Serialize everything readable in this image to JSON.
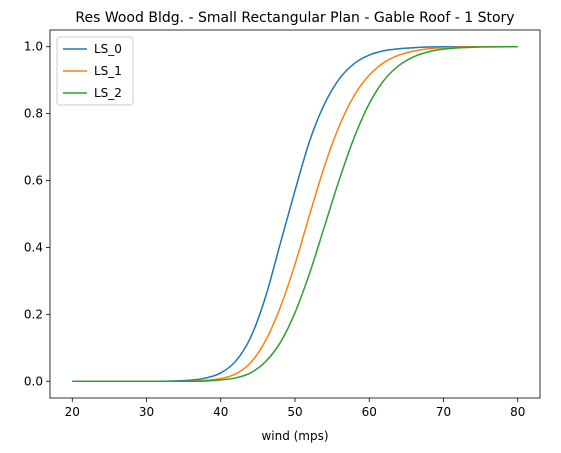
{
  "chart_data": {
    "type": "line",
    "title": "Res Wood Bldg. - Small Rectangular Plan - Gable Roof - 1 Story",
    "xlabel": "wind (mps)",
    "ylabel": "",
    "xlim": [
      17.0,
      83.0
    ],
    "ylim": [
      -0.05,
      1.05
    ],
    "xticks": [
      20,
      30,
      40,
      50,
      60,
      70,
      80
    ],
    "yticks": [
      0.0,
      0.2,
      0.4,
      0.6,
      0.8,
      1.0
    ],
    "xtick_labels": [
      "20",
      "30",
      "40",
      "50",
      "60",
      "70",
      "80"
    ],
    "ytick_labels": [
      "0.0",
      "0.2",
      "0.4",
      "0.6",
      "0.8",
      "1.0"
    ],
    "grid": false,
    "legend_position": "upper-left",
    "x": [
      20,
      30,
      35,
      38,
      40,
      42,
      44,
      46,
      48,
      50,
      52,
      54,
      56,
      58,
      60,
      62,
      64,
      66,
      68,
      70,
      75,
      80
    ],
    "series": [
      {
        "name": "LS_0",
        "color": "#1f77b4",
        "values": [
          0.0,
          0.0,
          0.002,
          0.01,
          0.025,
          0.06,
          0.13,
          0.25,
          0.41,
          0.57,
          0.72,
          0.83,
          0.905,
          0.95,
          0.975,
          0.988,
          0.994,
          0.997,
          0.999,
          1.0,
          1.0,
          1.0
        ]
      },
      {
        "name": "LS_1",
        "color": "#ff7f0e",
        "values": [
          0.0,
          0.0,
          0.0,
          0.003,
          0.008,
          0.022,
          0.055,
          0.12,
          0.22,
          0.35,
          0.5,
          0.645,
          0.765,
          0.855,
          0.915,
          0.953,
          0.975,
          0.987,
          0.994,
          0.997,
          1.0,
          1.0
        ]
      },
      {
        "name": "LS_2",
        "color": "#2ca02c",
        "values": [
          0.0,
          0.0,
          0.0,
          0.001,
          0.004,
          0.01,
          0.025,
          0.058,
          0.115,
          0.205,
          0.325,
          0.465,
          0.605,
          0.73,
          0.83,
          0.9,
          0.944,
          0.97,
          0.985,
          0.993,
          0.999,
          1.0
        ]
      }
    ]
  }
}
